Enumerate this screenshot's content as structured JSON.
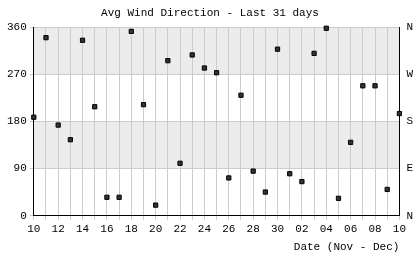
{
  "chart_data": {
    "type": "scatter",
    "title": "Avg Wind Direction - Last 31 days",
    "x_label": "Date (Nov - Dec)",
    "categories": [
      "10",
      null,
      "12",
      null,
      "14",
      null,
      "16",
      null,
      "18",
      null,
      "20",
      null,
      "22",
      null,
      "24",
      null,
      "26",
      null,
      "28",
      null,
      "30",
      null,
      "02",
      null,
      "04",
      null,
      "06",
      null,
      "08",
      null,
      "10"
    ],
    "values": [
      188,
      340,
      173,
      145,
      335,
      208,
      35,
      35,
      352,
      212,
      20,
      296,
      100,
      307,
      282,
      273,
      72,
      230,
      85,
      45,
      318,
      80,
      65,
      310,
      358,
      33,
      140,
      248,
      248,
      50,
      195
    ],
    "color": "#333333",
    "marker": "square",
    "ylim": [
      0,
      360
    ],
    "yticks": [
      0,
      90,
      180,
      270,
      360
    ],
    "y2lim": [
      0,
      360
    ],
    "y2ticks": [
      {
        "value": 0,
        "label": "N"
      },
      {
        "value": 90,
        "label": "E"
      },
      {
        "value": 180,
        "label": "S"
      },
      {
        "value": 270,
        "label": "W"
      },
      {
        "value": 360,
        "label": "N"
      }
    ],
    "grid": true
  }
}
